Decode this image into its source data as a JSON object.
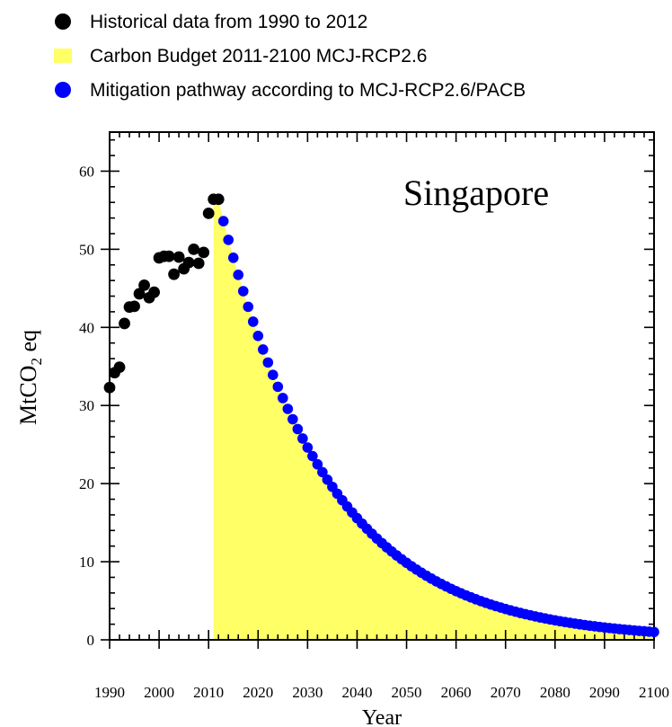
{
  "legend": [
    {
      "label": "Historical data from 1990 to 2012",
      "color": "#000000",
      "marker": "circle"
    },
    {
      "label": "Carbon Budget 2011-2100 MCJ-RCP2.6",
      "color": "#FFFF66",
      "marker": "square"
    },
    {
      "label": "Mitigation pathway according to MCJ-RCP2.6/PACB",
      "color": "#0000FF",
      "marker": "circle"
    }
  ],
  "chart_data": {
    "type": "scatter",
    "annotation": "Singapore",
    "xlabel": "Year",
    "ylabel": {
      "main": "MtCO",
      "sub": "2",
      "tail": " eq"
    },
    "xlim": [
      1990,
      2100
    ],
    "ylim": [
      0,
      65
    ],
    "xticks": [
      1990,
      2000,
      2010,
      2020,
      2030,
      2040,
      2050,
      2060,
      2070,
      2080,
      2090,
      2100
    ],
    "yticks": [
      0,
      10,
      20,
      30,
      40,
      50,
      60
    ],
    "grid": false,
    "legend_position": "top",
    "series": [
      {
        "name": "Historical data from 1990 to 2012",
        "color": "#000000",
        "x": [
          1990,
          1991,
          1992,
          1993,
          1994,
          1995,
          1996,
          1997,
          1998,
          1999,
          2000,
          2001,
          2002,
          2003,
          2004,
          2005,
          2006,
          2007,
          2008,
          2009,
          2010,
          2011,
          2012
        ],
        "y": [
          32.3,
          34.2,
          34.9,
          40.5,
          42.6,
          42.7,
          44.3,
          45.4,
          43.8,
          44.5,
          48.9,
          49.1,
          49.1,
          46.8,
          49.0,
          47.5,
          48.3,
          50.0,
          48.2,
          49.6,
          54.6,
          56.4,
          56.4
        ]
      },
      {
        "name": "Carbon Budget 2011-2100 MCJ-RCP2.6",
        "type": "area",
        "color": "#FFFF66",
        "x_range": [
          2011,
          2100
        ]
      },
      {
        "name": "Mitigation pathway according to MCJ-RCP2.6/PACB",
        "color": "#0000FF",
        "x_range": [
          2013,
          2100
        ],
        "start_value": 53.6,
        "end_value": 1.0
      }
    ]
  }
}
